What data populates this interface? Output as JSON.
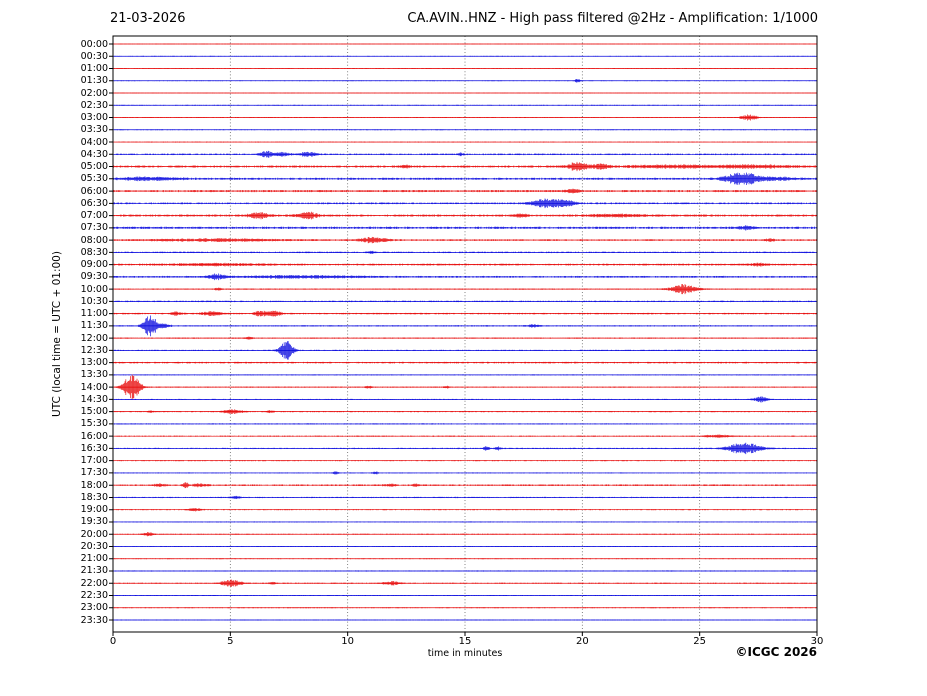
{
  "header": {
    "date": "21-03-2026",
    "title": "CA.AVIN..HNZ - High pass filtered @2Hz - Amplification: 1/1000"
  },
  "footer": {
    "copyright": "©ICGC 2026"
  },
  "axes": {
    "xlabel": "time in minutes",
    "ylabel": "UTC (local time = UTC + 01:00)"
  },
  "chart_data": {
    "type": "line",
    "subtype": "helicorder-day-seismogram",
    "title": "CA.AVIN..HNZ - High pass filtered @2Hz - Amplification: 1/1000",
    "date": "21-03-2026",
    "xlabel": "time in minutes",
    "ylabel": "UTC (local time = UTC + 01:00)",
    "xlim": [
      0,
      30
    ],
    "x_ticks": [
      0,
      5,
      10,
      15,
      20,
      25,
      30
    ],
    "grid": "vertical-dotted-every-5-min",
    "trace_interval_minutes": 30,
    "colors": {
      "red": "#e60000",
      "blue": "#0000dd",
      "grid": "#666666",
      "frame": "#000000"
    },
    "rows": [
      {
        "time": "00:00",
        "color": "red",
        "noise": 0.45,
        "events": []
      },
      {
        "time": "00:30",
        "color": "blue",
        "noise": 0.45,
        "events": []
      },
      {
        "time": "01:00",
        "color": "red",
        "noise": 0.45,
        "events": []
      },
      {
        "time": "01:30",
        "color": "blue",
        "noise": 0.45,
        "events": [
          {
            "t": 19.8,
            "amp": 1.8,
            "dur": 0.12
          }
        ]
      },
      {
        "time": "02:00",
        "color": "red",
        "noise": 0.45,
        "events": []
      },
      {
        "time": "02:30",
        "color": "blue",
        "noise": 0.5,
        "events": []
      },
      {
        "time": "03:00",
        "color": "red",
        "noise": 0.5,
        "events": [
          {
            "t": 27.1,
            "amp": 2.8,
            "dur": 0.35
          }
        ]
      },
      {
        "time": "03:30",
        "color": "blue",
        "noise": 0.5,
        "events": []
      },
      {
        "time": "04:00",
        "color": "red",
        "noise": 0.55,
        "events": []
      },
      {
        "time": "04:30",
        "color": "blue",
        "noise": 0.8,
        "events": [
          {
            "t": 6.6,
            "amp": 2.8,
            "dur": 0.4
          },
          {
            "t": 7.3,
            "amp": 1.8,
            "dur": 0.25
          },
          {
            "t": 8.3,
            "amp": 2.3,
            "dur": 0.4
          },
          {
            "t": 14.8,
            "amp": 1.2,
            "dur": 0.15
          }
        ]
      },
      {
        "time": "05:00",
        "color": "red",
        "noise": 1.1,
        "events": [
          {
            "t": 19.8,
            "amp": 4.0,
            "dur": 0.45
          },
          {
            "t": 20.8,
            "amp": 2.4,
            "dur": 0.35
          },
          {
            "t": 12.4,
            "amp": 1.2,
            "dur": 0.25
          },
          {
            "t": 23.5,
            "amp": 1.4,
            "dur": 1.5
          },
          {
            "t": 27.0,
            "amp": 1.4,
            "dur": 2.0
          }
        ]
      },
      {
        "time": "05:30",
        "color": "blue",
        "noise": 1.1,
        "events": [
          {
            "t": 26.8,
            "amp": 6.5,
            "dur": 0.7
          },
          {
            "t": 1.5,
            "amp": 1.6,
            "dur": 1.2
          },
          {
            "t": 28.3,
            "amp": 1.4,
            "dur": 0.8
          }
        ]
      },
      {
        "time": "06:00",
        "color": "red",
        "noise": 1.1,
        "events": [
          {
            "t": 19.6,
            "amp": 1.8,
            "dur": 0.3
          }
        ]
      },
      {
        "time": "06:30",
        "color": "blue",
        "noise": 0.9,
        "events": [
          {
            "t": 18.6,
            "amp": 4.5,
            "dur": 0.7
          },
          {
            "t": 19.4,
            "amp": 1.8,
            "dur": 0.35
          }
        ]
      },
      {
        "time": "07:00",
        "color": "red",
        "noise": 1.1,
        "events": [
          {
            "t": 6.2,
            "amp": 3.2,
            "dur": 0.4
          },
          {
            "t": 8.3,
            "amp": 3.2,
            "dur": 0.45
          },
          {
            "t": 17.4,
            "amp": 1.8,
            "dur": 0.25
          },
          {
            "t": 21.5,
            "amp": 1.2,
            "dur": 1.2
          }
        ]
      },
      {
        "time": "07:30",
        "color": "blue",
        "noise": 1.2,
        "events": [
          {
            "t": 27.0,
            "amp": 1.6,
            "dur": 0.35
          }
        ]
      },
      {
        "time": "08:00",
        "color": "red",
        "noise": 0.9,
        "events": [
          {
            "t": 11.1,
            "amp": 2.8,
            "dur": 0.55
          },
          {
            "t": 4.5,
            "amp": 1.2,
            "dur": 2.5
          },
          {
            "t": 28.0,
            "amp": 1.6,
            "dur": 0.2
          }
        ]
      },
      {
        "time": "08:30",
        "color": "blue",
        "noise": 0.75,
        "events": [
          {
            "t": 11.0,
            "amp": 1.2,
            "dur": 0.15
          }
        ]
      },
      {
        "time": "09:00",
        "color": "red",
        "noise": 0.95,
        "events": [
          {
            "t": 4.5,
            "amp": 1.1,
            "dur": 2.0
          },
          {
            "t": 27.5,
            "amp": 1.4,
            "dur": 0.4
          }
        ]
      },
      {
        "time": "09:30",
        "color": "blue",
        "noise": 0.95,
        "events": [
          {
            "t": 4.4,
            "amp": 2.8,
            "dur": 0.35
          },
          {
            "t": 8.0,
            "amp": 1.2,
            "dur": 2.5
          }
        ]
      },
      {
        "time": "10:00",
        "color": "red",
        "noise": 0.65,
        "events": [
          {
            "t": 24.3,
            "amp": 4.5,
            "dur": 0.55
          },
          {
            "t": 4.5,
            "amp": 1.2,
            "dur": 0.15
          }
        ]
      },
      {
        "time": "10:30",
        "color": "blue",
        "noise": 0.75,
        "events": []
      },
      {
        "time": "11:00",
        "color": "red",
        "noise": 0.8,
        "events": [
          {
            "t": 2.7,
            "amp": 1.6,
            "dur": 0.25
          },
          {
            "t": 4.2,
            "amp": 2.2,
            "dur": 0.4
          },
          {
            "t": 6.3,
            "amp": 2.8,
            "dur": 0.28
          },
          {
            "t": 6.9,
            "amp": 2.8,
            "dur": 0.28
          }
        ]
      },
      {
        "time": "11:30",
        "color": "blue",
        "noise": 0.7,
        "events": [
          {
            "t": 1.6,
            "amp": 11.0,
            "dur": 0.3
          },
          {
            "t": 2.2,
            "amp": 1.8,
            "dur": 0.25
          },
          {
            "t": 17.9,
            "amp": 1.2,
            "dur": 0.3
          }
        ]
      },
      {
        "time": "12:00",
        "color": "red",
        "noise": 0.65,
        "events": [
          {
            "t": 5.8,
            "amp": 1.4,
            "dur": 0.12
          }
        ]
      },
      {
        "time": "12:30",
        "color": "blue",
        "noise": 0.65,
        "events": [
          {
            "t": 7.4,
            "amp": 9.5,
            "dur": 0.3
          }
        ]
      },
      {
        "time": "13:00",
        "color": "red",
        "noise": 0.85,
        "events": []
      },
      {
        "time": "13:30",
        "color": "blue",
        "noise": 0.55,
        "events": []
      },
      {
        "time": "14:00",
        "color": "red",
        "noise": 0.6,
        "events": [
          {
            "t": 0.8,
            "amp": 13.0,
            "dur": 0.35
          },
          {
            "t": 10.9,
            "amp": 1.3,
            "dur": 0.18
          },
          {
            "t": 14.2,
            "amp": 1.1,
            "dur": 0.12
          }
        ]
      },
      {
        "time": "14:30",
        "color": "blue",
        "noise": 0.55,
        "events": [
          {
            "t": 27.6,
            "amp": 2.8,
            "dur": 0.3
          }
        ]
      },
      {
        "time": "15:00",
        "color": "red",
        "noise": 0.65,
        "events": [
          {
            "t": 5.1,
            "amp": 2.3,
            "dur": 0.4
          },
          {
            "t": 1.6,
            "amp": 1.1,
            "dur": 0.12
          },
          {
            "t": 6.7,
            "amp": 1.2,
            "dur": 0.15
          }
        ]
      },
      {
        "time": "15:30",
        "color": "blue",
        "noise": 0.65,
        "events": []
      },
      {
        "time": "16:00",
        "color": "red",
        "noise": 0.65,
        "events": [
          {
            "t": 25.8,
            "amp": 1.2,
            "dur": 0.6
          }
        ]
      },
      {
        "time": "16:30",
        "color": "blue",
        "noise": 0.65,
        "events": [
          {
            "t": 15.9,
            "amp": 2.3,
            "dur": 0.12
          },
          {
            "t": 16.4,
            "amp": 1.8,
            "dur": 0.12
          },
          {
            "t": 26.9,
            "amp": 5.5,
            "dur": 0.7
          }
        ]
      },
      {
        "time": "17:00",
        "color": "red",
        "noise": 0.6,
        "events": []
      },
      {
        "time": "17:30",
        "color": "blue",
        "noise": 0.55,
        "events": [
          {
            "t": 9.5,
            "amp": 1.4,
            "dur": 0.12
          },
          {
            "t": 11.2,
            "amp": 1.4,
            "dur": 0.12
          }
        ]
      },
      {
        "time": "18:00",
        "color": "red",
        "noise": 0.85,
        "events": [
          {
            "t": 2.0,
            "amp": 1.4,
            "dur": 0.25
          },
          {
            "t": 3.1,
            "amp": 2.8,
            "dur": 0.12
          },
          {
            "t": 3.7,
            "amp": 1.4,
            "dur": 0.3
          },
          {
            "t": 11.8,
            "amp": 1.2,
            "dur": 0.25
          },
          {
            "t": 12.9,
            "amp": 1.2,
            "dur": 0.18
          }
        ]
      },
      {
        "time": "18:30",
        "color": "blue",
        "noise": 0.65,
        "events": [
          {
            "t": 5.2,
            "amp": 1.2,
            "dur": 0.25
          }
        ]
      },
      {
        "time": "19:00",
        "color": "red",
        "noise": 0.6,
        "events": [
          {
            "t": 3.5,
            "amp": 1.4,
            "dur": 0.3
          }
        ]
      },
      {
        "time": "19:30",
        "color": "blue",
        "noise": 0.55,
        "events": []
      },
      {
        "time": "20:00",
        "color": "red",
        "noise": 0.55,
        "events": [
          {
            "t": 1.5,
            "amp": 1.9,
            "dur": 0.25
          }
        ]
      },
      {
        "time": "20:30",
        "color": "blue",
        "noise": 0.5,
        "events": []
      },
      {
        "time": "21:00",
        "color": "red",
        "noise": 0.5,
        "events": []
      },
      {
        "time": "21:30",
        "color": "blue",
        "noise": 0.6,
        "events": []
      },
      {
        "time": "22:00",
        "color": "red",
        "noise": 0.6,
        "events": [
          {
            "t": 5.05,
            "amp": 3.2,
            "dur": 0.45
          },
          {
            "t": 6.8,
            "amp": 1.2,
            "dur": 0.15
          },
          {
            "t": 11.9,
            "amp": 1.9,
            "dur": 0.4
          }
        ]
      },
      {
        "time": "22:30",
        "color": "blue",
        "noise": 0.5,
        "events": []
      },
      {
        "time": "23:00",
        "color": "red",
        "noise": 0.55,
        "events": []
      },
      {
        "time": "23:30",
        "color": "blue",
        "noise": 0.55,
        "events": []
      }
    ]
  }
}
